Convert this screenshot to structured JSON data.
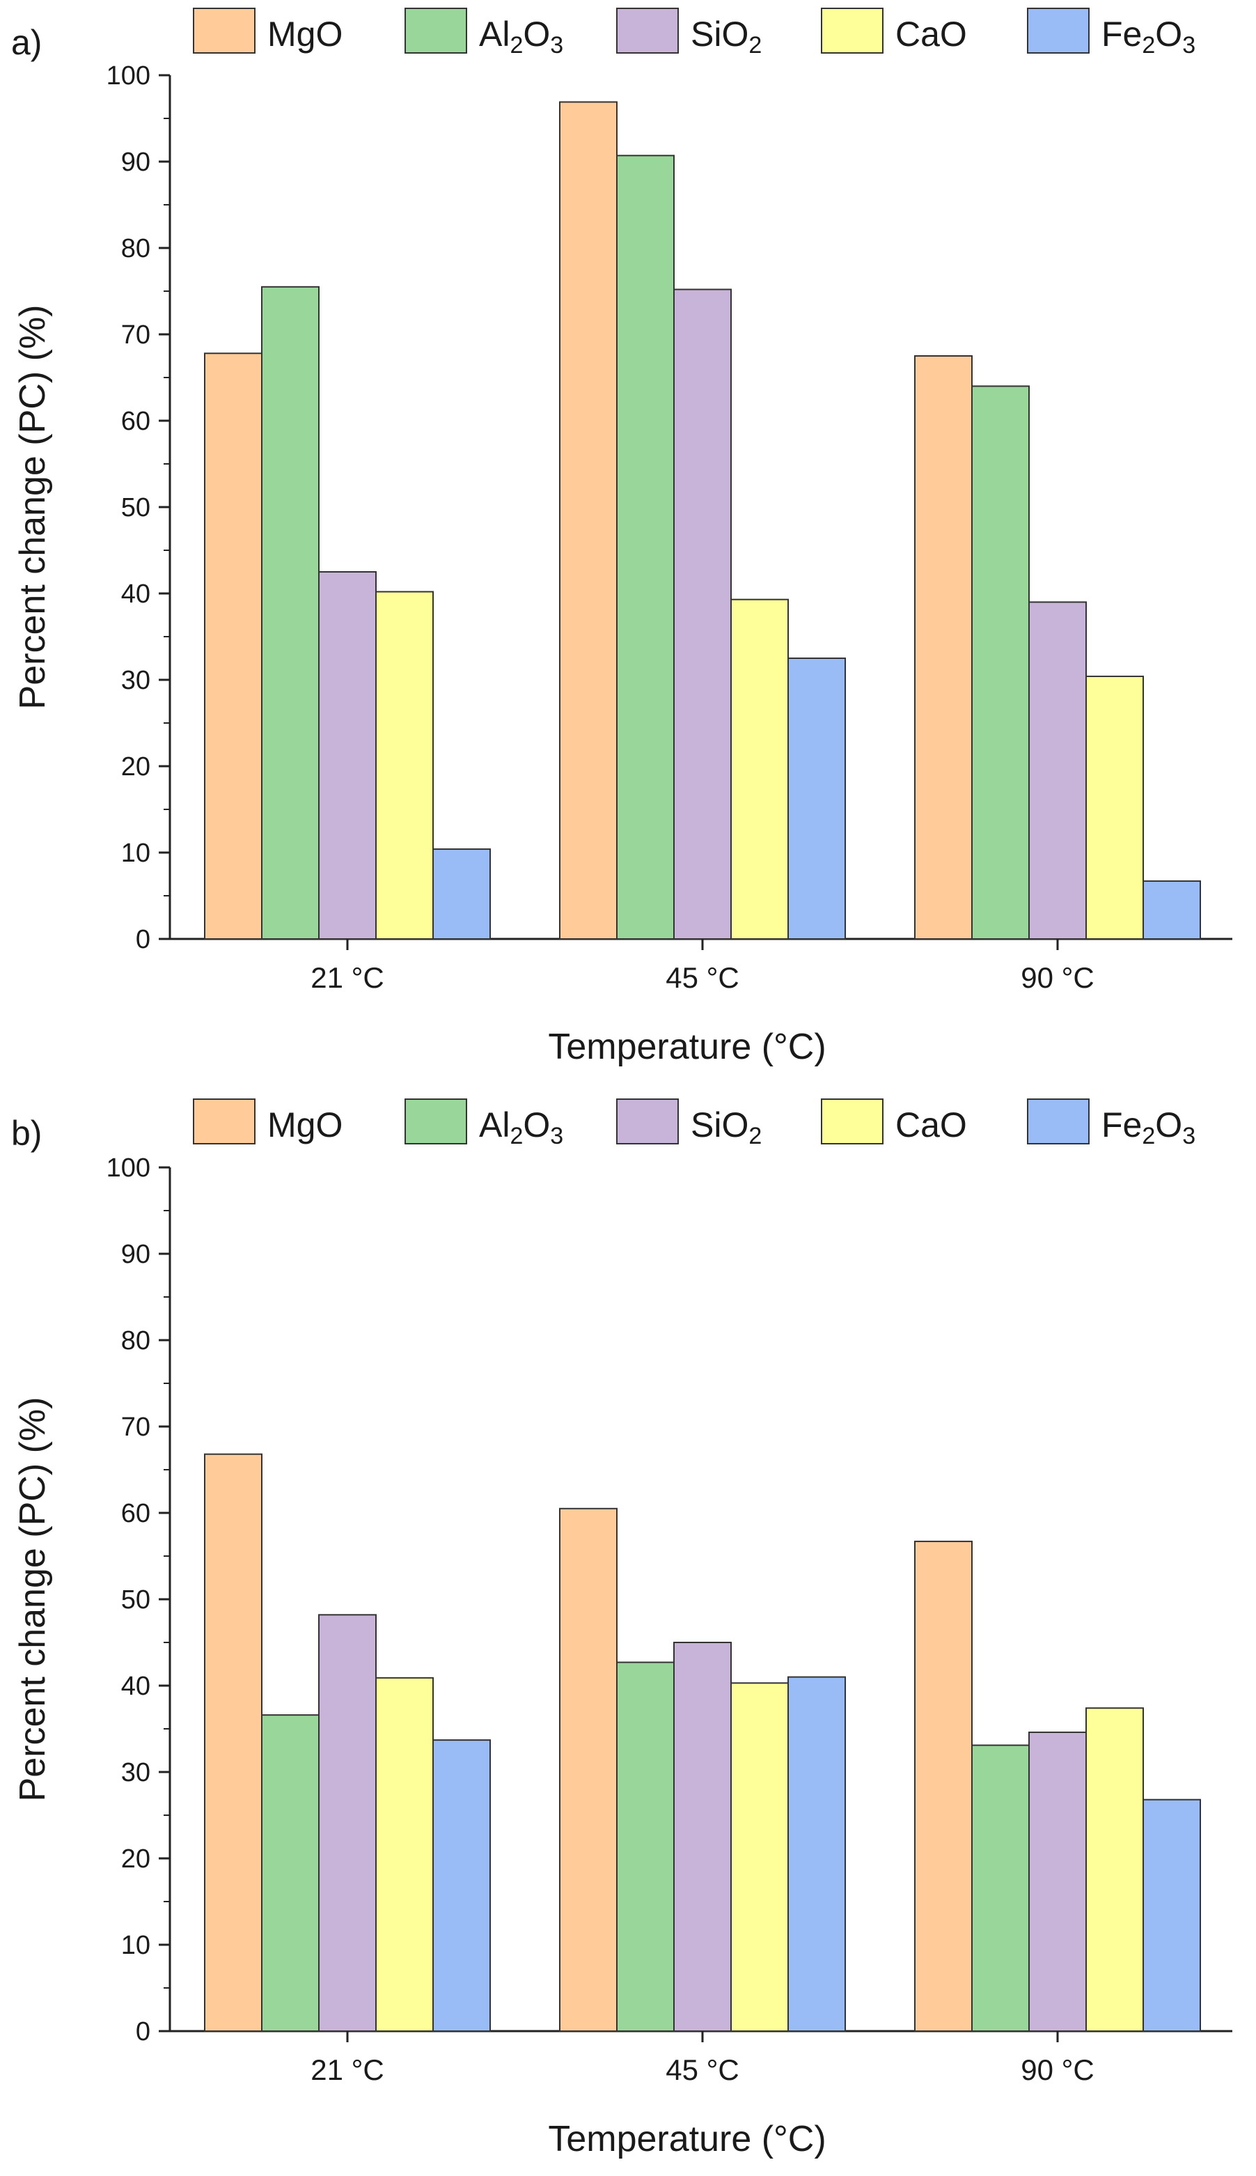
{
  "chart_data": [
    {
      "type": "bar",
      "panel_label": "a)",
      "categories": [
        "21 °C",
        "45 °C",
        "90 °C"
      ],
      "series": [
        {
          "name": "MgO",
          "values": [
            67.8,
            96.9,
            67.5
          ]
        },
        {
          "name": "Al2O3",
          "values": [
            75.5,
            90.7,
            64.0
          ]
        },
        {
          "name": "SiO2",
          "values": [
            42.5,
            75.2,
            39.0
          ]
        },
        {
          "name": "CaO",
          "values": [
            40.2,
            39.3,
            30.4
          ]
        },
        {
          "name": "Fe2O3",
          "values": [
            10.4,
            32.5,
            6.7
          ]
        }
      ],
      "xlabel": "Temperature (°C)",
      "ylabel": "Percent change (PC) (%)",
      "ylim": [
        0,
        100
      ],
      "yticks": [
        0,
        10,
        20,
        30,
        40,
        50,
        60,
        70,
        80,
        90,
        100
      ],
      "legend_position": "top",
      "grid": false
    },
    {
      "type": "bar",
      "panel_label": "b)",
      "categories": [
        "21 °C",
        "45 °C",
        "90 °C"
      ],
      "series": [
        {
          "name": "MgO",
          "values": [
            66.8,
            60.5,
            56.7
          ]
        },
        {
          "name": "Al2O3",
          "values": [
            36.6,
            42.7,
            33.1
          ]
        },
        {
          "name": "SiO2",
          "values": [
            48.2,
            45.0,
            34.6
          ]
        },
        {
          "name": "CaO",
          "values": [
            40.9,
            40.3,
            37.4
          ]
        },
        {
          "name": "Fe2O3",
          "values": [
            33.7,
            41.0,
            26.8
          ]
        }
      ],
      "xlabel": "Temperature (°C)",
      "ylabel": "Percent change (PC) (%)",
      "ylim": [
        0,
        100
      ],
      "yticks": [
        0,
        10,
        20,
        30,
        40,
        50,
        60,
        70,
        80,
        90,
        100
      ],
      "legend_position": "top",
      "grid": false
    }
  ],
  "legend_entries": [
    {
      "base": "MgO",
      "parts": [
        [
          "MgO",
          ""
        ]
      ],
      "color": "#ffcc99"
    },
    {
      "base": "Al2O3",
      "parts": [
        [
          "Al",
          ""
        ],
        [
          "2",
          "sub"
        ],
        [
          "O",
          ""
        ],
        [
          "3",
          "sub"
        ]
      ],
      "color": "#99d699"
    },
    {
      "base": "SiO2",
      "parts": [
        [
          "SiO",
          ""
        ],
        [
          "2",
          "sub"
        ]
      ],
      "color": "#c8b4d8"
    },
    {
      "base": "CaO",
      "parts": [
        [
          "CaO",
          ""
        ]
      ],
      "color": "#ffff99"
    },
    {
      "base": "Fe2O3",
      "parts": [
        [
          "Fe",
          ""
        ],
        [
          "2",
          "sub"
        ],
        [
          "O",
          ""
        ],
        [
          "3",
          "sub"
        ]
      ],
      "color": "#99bbf6"
    }
  ]
}
